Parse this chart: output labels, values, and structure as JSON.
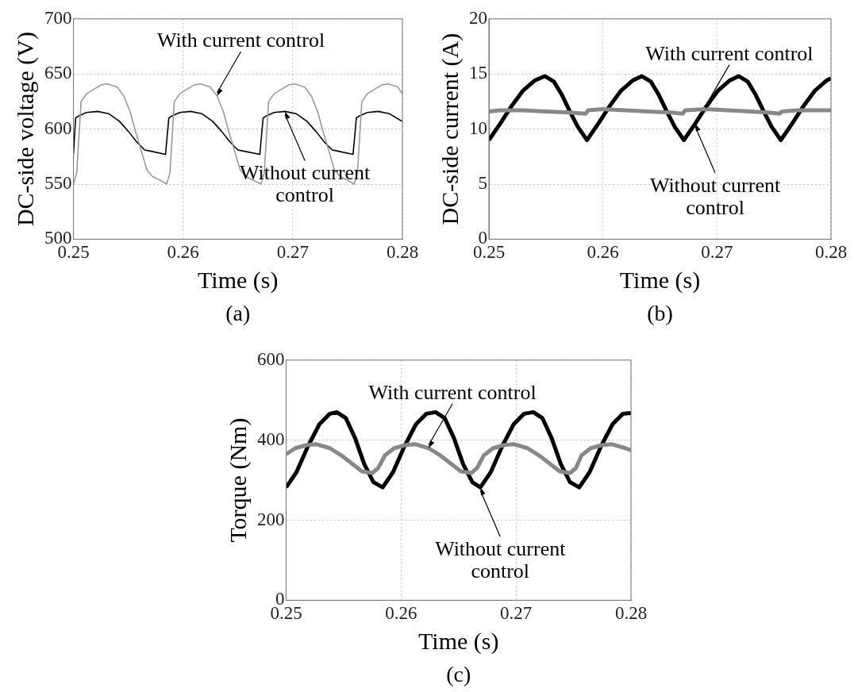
{
  "chart_data": [
    {
      "type": "line",
      "xlabel": "Time (s)",
      "ylabel": "DC-side voltage (V)",
      "xlim": [
        0.25,
        0.28
      ],
      "xticks": [
        0.25,
        0.26,
        0.27,
        0.28
      ],
      "ylim": [
        500,
        700
      ],
      "yticks": [
        500,
        550,
        600,
        650,
        700
      ],
      "grid": true,
      "series": [
        {
          "color": "#999999",
          "x": [
            0.25,
            0.2503,
            0.2507,
            0.2512,
            0.2525,
            0.2531,
            0.254,
            0.2546,
            0.2552,
            0.2556,
            0.2562,
            0.2567,
            0.2572,
            0.258,
            0.2585,
            0.2588,
            0.2592,
            0.2597,
            0.261,
            0.2616,
            0.2625,
            0.2631,
            0.2637,
            0.2641,
            0.2647,
            0.2652,
            0.2657,
            0.2665,
            0.2671,
            0.2674,
            0.2678,
            0.2683,
            0.2696,
            0.2702,
            0.2711,
            0.2717,
            0.2723,
            0.2727,
            0.2733,
            0.2738,
            0.2743,
            0.2751,
            0.2756,
            0.2759,
            0.2763,
            0.2768,
            0.2781,
            0.2787,
            0.2796,
            0.28
          ],
          "values": [
            550,
            560,
            625,
            632,
            640,
            641,
            638,
            630,
            615,
            600,
            580,
            563,
            557,
            553,
            550,
            560,
            625,
            632,
            640,
            641,
            638,
            630,
            615,
            600,
            580,
            563,
            557,
            553,
            550,
            560,
            625,
            632,
            640,
            641,
            638,
            630,
            615,
            600,
            580,
            563,
            557,
            553,
            550,
            560,
            625,
            632,
            640,
            641,
            638,
            632
          ]
        },
        {
          "color": "#000000",
          "x": [
            0.25,
            0.2502,
            0.2505,
            0.2512,
            0.2522,
            0.2532,
            0.2542,
            0.255,
            0.2558,
            0.2565,
            0.257,
            0.2584,
            0.2587,
            0.259,
            0.2597,
            0.2607,
            0.2617,
            0.2627,
            0.2635,
            0.2643,
            0.265,
            0.2655,
            0.267,
            0.2673,
            0.2676,
            0.2683,
            0.2693,
            0.2703,
            0.2713,
            0.2721,
            0.2729,
            0.2736,
            0.2741,
            0.2755,
            0.2758,
            0.2761,
            0.2768,
            0.2778,
            0.2788,
            0.2798,
            0.28
          ],
          "values": [
            577,
            610,
            612,
            615,
            616,
            614,
            607,
            598,
            588,
            581,
            580,
            577,
            610,
            612,
            615,
            616,
            614,
            607,
            598,
            588,
            581,
            580,
            577,
            610,
            612,
            615,
            616,
            614,
            607,
            598,
            588,
            581,
            580,
            577,
            610,
            612,
            615,
            616,
            614,
            608,
            607
          ]
        }
      ],
      "annotations": [
        {
          "text": "With current control",
          "x": 0.2631,
          "y": 630
        },
        {
          "text": "Without current control",
          "x": 0.2693,
          "y": 616
        },
        "(a)"
      ]
    },
    {
      "type": "line",
      "xlabel": "Time (s)",
      "ylabel": "DC-side current (A)",
      "xlim": [
        0.25,
        0.28
      ],
      "xticks": [
        0.25,
        0.26,
        0.27,
        0.28
      ],
      "ylim": [
        0,
        20
      ],
      "yticks": [
        0,
        5,
        10,
        15,
        20
      ],
      "grid": true,
      "series": [
        {
          "color": "#888888",
          "x": [
            0.25,
            0.251,
            0.253,
            0.255,
            0.257,
            0.2585,
            0.2587,
            0.26,
            0.262,
            0.264,
            0.266,
            0.267,
            0.2672,
            0.269,
            0.271,
            0.273,
            0.2745,
            0.2755,
            0.2757,
            0.277,
            0.28
          ],
          "values": [
            11.6,
            11.7,
            11.7,
            11.6,
            11.5,
            11.4,
            11.7,
            11.8,
            11.7,
            11.6,
            11.5,
            11.4,
            11.7,
            11.8,
            11.7,
            11.6,
            11.5,
            11.4,
            11.6,
            11.7,
            11.7
          ]
        },
        {
          "color": "#000000",
          "x": [
            0.25,
            0.251,
            0.252,
            0.253,
            0.254,
            0.2549,
            0.2557,
            0.2564,
            0.2571,
            0.2578,
            0.2586,
            0.2596,
            0.2606,
            0.2616,
            0.2626,
            0.2634,
            0.2642,
            0.2649,
            0.2656,
            0.2663,
            0.2671,
            0.2681,
            0.2691,
            0.2701,
            0.2711,
            0.2719,
            0.2727,
            0.2734,
            0.2741,
            0.2748,
            0.2756,
            0.2766,
            0.2776,
            0.2786,
            0.2796,
            0.28
          ],
          "values": [
            9.0,
            10.5,
            12.1,
            13.5,
            14.4,
            14.8,
            14.3,
            13.1,
            11.6,
            10.2,
            9.0,
            10.5,
            12.1,
            13.5,
            14.4,
            14.8,
            14.3,
            13.1,
            11.6,
            10.2,
            9.0,
            10.5,
            12.1,
            13.5,
            14.4,
            14.8,
            14.3,
            13.1,
            11.6,
            10.2,
            9.0,
            10.5,
            12.1,
            13.5,
            14.4,
            14.6
          ]
        }
      ],
      "annotations": [
        {
          "text": "With current control",
          "x": 0.269,
          "y": 11.8
        },
        {
          "text": "Without current control",
          "x": 0.2681,
          "y": 10.5
        },
        "(b)"
      ]
    },
    {
      "type": "line",
      "xlabel": "Time (s)",
      "ylabel": "Torque (Nm)",
      "xlim": [
        0.25,
        0.28
      ],
      "xticks": [
        0.25,
        0.26,
        0.27,
        0.28
      ],
      "ylim": [
        0,
        600
      ],
      "yticks": [
        0,
        200,
        400,
        600
      ],
      "grid": true,
      "series": [
        {
          "color": "#888888",
          "x": [
            0.25,
            0.2508,
            0.2518,
            0.2526,
            0.2538,
            0.2548,
            0.2558,
            0.2566,
            0.2575,
            0.258,
            0.2586,
            0.2594,
            0.2604,
            0.2612,
            0.2624,
            0.2634,
            0.2644,
            0.2652,
            0.2661,
            0.2666,
            0.2672,
            0.268,
            0.269,
            0.2698,
            0.271,
            0.272,
            0.273,
            0.2738,
            0.2747,
            0.2752,
            0.2757,
            0.2765,
            0.2775,
            0.2783,
            0.2795,
            0.28
          ],
          "values": [
            365,
            380,
            388,
            390,
            380,
            362,
            340,
            322,
            318,
            330,
            362,
            380,
            388,
            390,
            380,
            362,
            340,
            322,
            318,
            330,
            362,
            380,
            388,
            390,
            380,
            362,
            340,
            322,
            318,
            330,
            362,
            380,
            388,
            390,
            380,
            375
          ]
        },
        {
          "color": "#000000",
          "x": [
            0.25,
            0.2509,
            0.2519,
            0.2529,
            0.2538,
            0.2544,
            0.2552,
            0.256,
            0.2568,
            0.2576,
            0.2584,
            0.2593,
            0.2603,
            0.2613,
            0.2622,
            0.263,
            0.2638,
            0.2646,
            0.2654,
            0.2662,
            0.2669,
            0.2678,
            0.2688,
            0.2698,
            0.2707,
            0.2715,
            0.2723,
            0.2731,
            0.2739,
            0.2747,
            0.2755,
            0.2764,
            0.2774,
            0.2784,
            0.2793,
            0.28
          ],
          "values": [
            282,
            320,
            385,
            440,
            466,
            470,
            455,
            405,
            340,
            295,
            282,
            320,
            385,
            440,
            466,
            470,
            455,
            405,
            340,
            295,
            282,
            320,
            385,
            440,
            466,
            470,
            455,
            405,
            340,
            295,
            282,
            320,
            385,
            440,
            466,
            468
          ]
        }
      ],
      "annotations": [
        {
          "text": "With current control",
          "x": 0.2624,
          "y": 380
        },
        {
          "text": "Without current control",
          "x": 0.2669,
          "y": 282
        },
        "(c)"
      ]
    }
  ]
}
